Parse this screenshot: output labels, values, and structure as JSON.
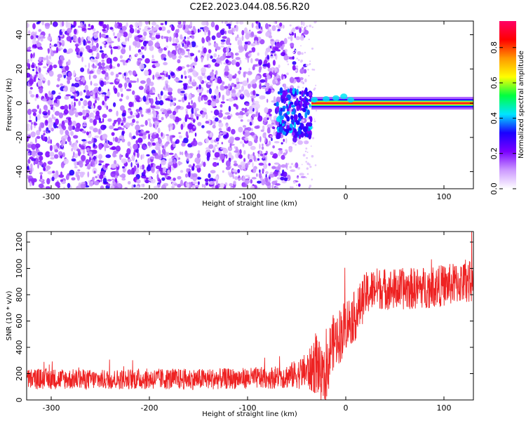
{
  "figure_title": "C2E2.2023.044.08.56.R20",
  "chart_data": [
    {
      "type": "heatmap",
      "title": "",
      "xlabel": "Height of straight line (km)",
      "ylabel": "Frequency (Hz)",
      "xlim": [
        -325,
        130
      ],
      "ylim": [
        -50,
        48
      ],
      "x_ticks": [
        -300,
        -200,
        -100,
        0,
        100
      ],
      "y_ticks": [
        -40,
        -20,
        0,
        20,
        40
      ],
      "colorbar": {
        "label": "Normalized spectral amplitude",
        "range": [
          0,
          0.95
        ],
        "ticks": [
          0.0,
          0.2,
          0.4,
          0.6,
          0.8
        ],
        "colors": [
          "#ffffff",
          "#cc99ff",
          "#7a00ff",
          "#1a00ff",
          "#00e5ff",
          "#00ff40",
          "#ffff00",
          "#ff9900",
          "#ff0000",
          "#ff0066"
        ]
      },
      "features": [
        {
          "name": "background_noise",
          "x_range": [
            -325,
            -60
          ],
          "freq_range": [
            -50,
            48
          ],
          "amplitude": 0.1
        },
        {
          "name": "transition",
          "x_range": [
            -70,
            -35
          ],
          "freq_range": [
            -20,
            8
          ],
          "amplitude": 0.3
        },
        {
          "name": "carrier_line",
          "x_range": [
            -35,
            130
          ],
          "frequency": 0,
          "amplitude": 0.95
        }
      ],
      "grid": false
    },
    {
      "type": "line",
      "title": "",
      "xlabel": "Height of straight line (km)",
      "ylabel": "SNR (10 * v/v)",
      "xlim": [
        -325,
        130
      ],
      "ylim": [
        0,
        1280
      ],
      "x_ticks": [
        -300,
        -200,
        -100,
        0,
        100
      ],
      "y_ticks": [
        0,
        200,
        400,
        600,
        800,
        1000,
        1200
      ],
      "color": "#ee2222",
      "series": [
        {
          "x": [
            -325,
            -300,
            -250,
            -200,
            -150,
            -100,
            -75,
            -60,
            -50,
            -40,
            -35,
            -30,
            -25,
            -20,
            -15,
            -10,
            -5,
            0,
            10,
            20,
            30,
            50,
            75,
            100,
            125
          ],
          "mean": [
            160,
            160,
            155,
            160,
            158,
            165,
            170,
            180,
            195,
            220,
            230,
            300,
            180,
            150,
            420,
            460,
            500,
            580,
            640,
            800,
            850,
            840,
            850,
            870,
            900
          ],
          "spread": [
            80,
            80,
            75,
            80,
            80,
            80,
            85,
            95,
            110,
            140,
            180,
            260,
            200,
            220,
            220,
            200,
            220,
            200,
            190,
            170,
            160,
            160,
            160,
            160,
            160
          ]
        }
      ],
      "grid": false
    }
  ]
}
